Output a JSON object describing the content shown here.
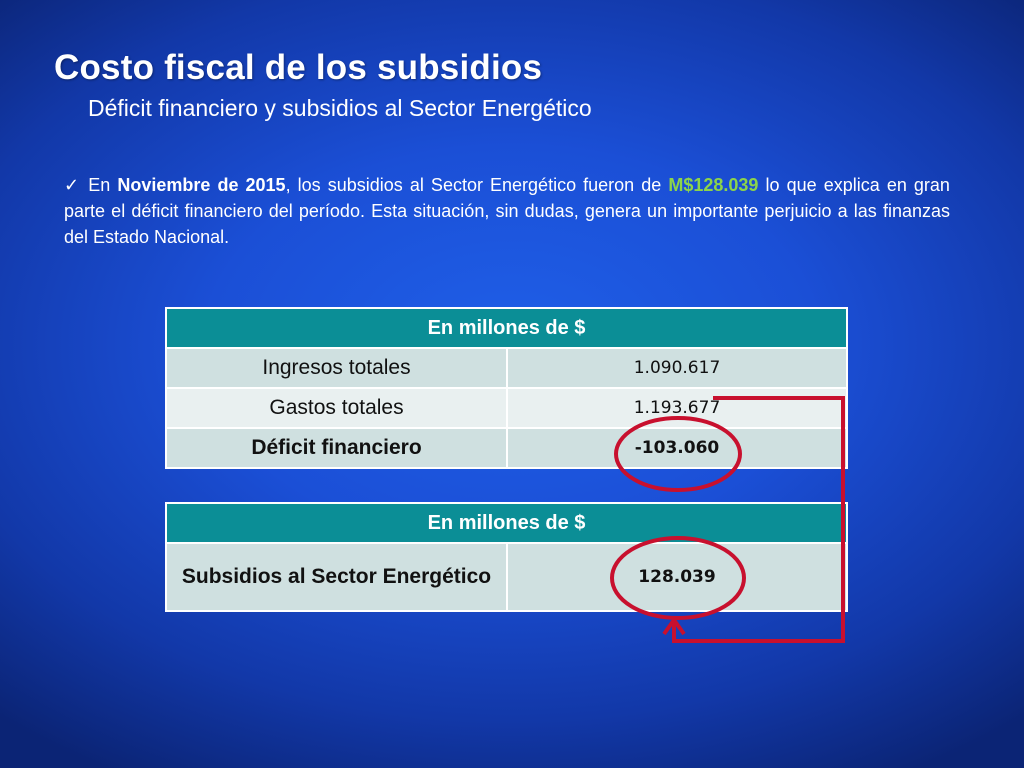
{
  "slide": {
    "title": "Costo fiscal de los subsidios",
    "subtitle": "Déficit financiero y subsidios al Sector Energético",
    "bullet": {
      "checkmark": "✓",
      "intro": "En",
      "date": "Noviembre de 2015",
      "middle": ", los subsidios al Sector Energético fueron de",
      "amount": "M$128.039",
      "rest": "lo que explica en gran parte el déficit financiero del período. Esta situación, sin dudas, genera un importante perjuicio a las finanzas del Estado Nacional."
    }
  },
  "table1": {
    "header": "En millones de $",
    "rows": [
      {
        "label": "Ingresos totales",
        "value": "1.090.617"
      },
      {
        "label": "Gastos totales",
        "value": "1.193.677"
      },
      {
        "label": "Déficit financiero",
        "value": "-103.060"
      }
    ]
  },
  "table2": {
    "header": "En millones de $",
    "label": "Subsidios al Sector Energético",
    "value": "128.039"
  },
  "colors": {
    "background": "#1b4fd6",
    "table_header": "#0b8e96",
    "highlight_green": "#8dd44a",
    "annotation_red": "#c8102e"
  }
}
